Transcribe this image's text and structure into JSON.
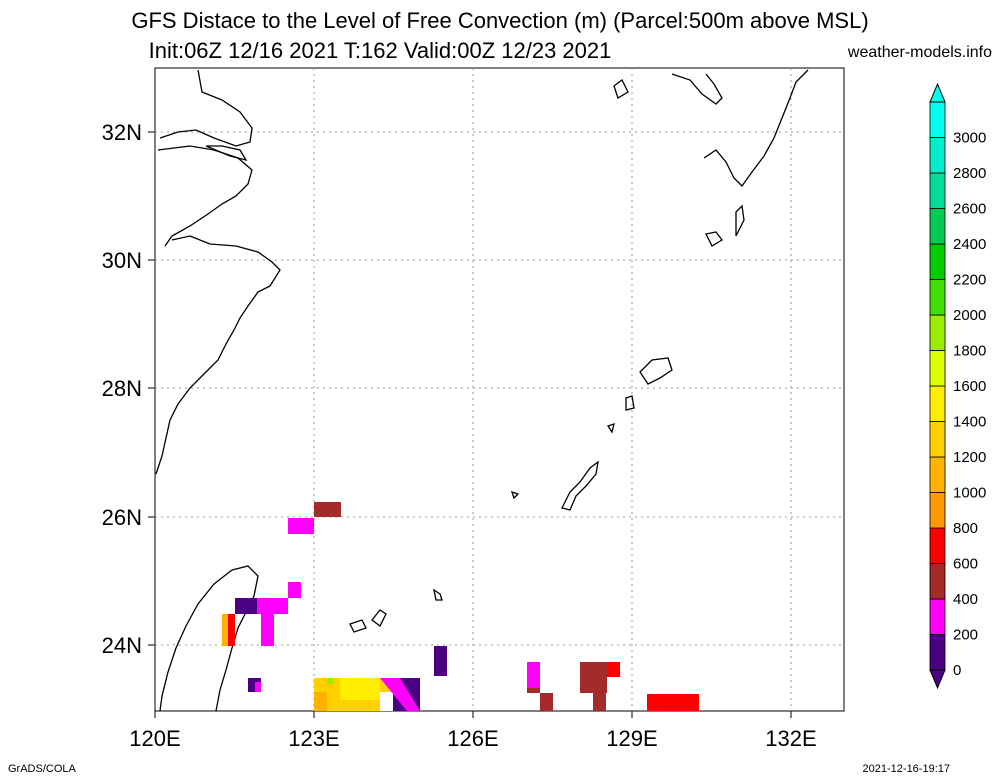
{
  "header": {
    "title_line1": "GFS Distace to the Level of Free Convection (m) (Parcel:500m above MSL)",
    "title_line2": "Init:06Z 12/16 2021 T:162 Valid:00Z 12/23 2021",
    "site": "weather-models.info"
  },
  "map": {
    "lat_labels": [
      "32N",
      "30N",
      "28N",
      "26N",
      "24N"
    ],
    "lon_labels": [
      "120E",
      "123E",
      "126E",
      "129E",
      "132E"
    ]
  },
  "colorbar": {
    "levels": [
      "0",
      "200",
      "400",
      "600",
      "800",
      "1000",
      "1200",
      "1400",
      "1600",
      "1800",
      "2000",
      "2200",
      "2400",
      "2600",
      "2800",
      "3000"
    ],
    "colors": [
      "#4b0082",
      "#ff00ff",
      "#a52a2a",
      "#ff0000",
      "#ff9900",
      "#ffb300",
      "#ffd000",
      "#ffee00",
      "#ddff00",
      "#99ee00",
      "#44dd00",
      "#00cc00",
      "#00cc55",
      "#00dd99",
      "#00eecc",
      "#00ffee"
    ]
  },
  "footer": {
    "left": "GrADS/COLA",
    "right": "2021-12-16-19:17"
  }
}
